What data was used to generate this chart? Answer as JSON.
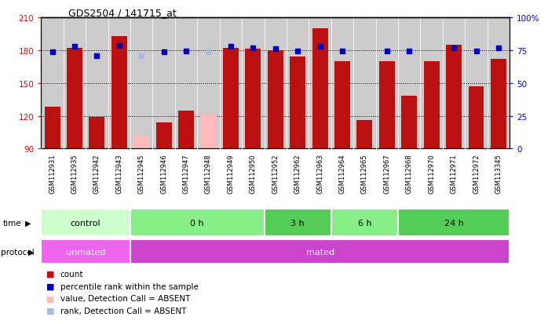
{
  "title": "GDS2504 / 141715_at",
  "samples": [
    "GSM112931",
    "GSM112935",
    "GSM112942",
    "GSM112943",
    "GSM112945",
    "GSM112946",
    "GSM112947",
    "GSM112948",
    "GSM112949",
    "GSM112950",
    "GSM112952",
    "GSM112962",
    "GSM112963",
    "GSM112964",
    "GSM112965",
    "GSM112967",
    "GSM112968",
    "GSM112970",
    "GSM112971",
    "GSM112972",
    "GSM113345"
  ],
  "red_values": [
    128,
    182,
    119,
    193,
    null,
    114,
    125,
    null,
    182,
    181,
    180,
    174,
    200,
    170,
    116,
    170,
    138,
    170,
    185,
    147,
    172
  ],
  "pink_values": [
    null,
    null,
    null,
    null,
    102,
    null,
    null,
    121,
    null,
    null,
    null,
    null,
    null,
    null,
    null,
    null,
    null,
    null,
    null,
    null,
    null
  ],
  "blue_values": [
    178,
    183,
    175,
    184,
    null,
    178,
    179,
    null,
    183,
    182,
    181,
    179,
    183,
    179,
    null,
    179,
    179,
    null,
    182,
    179,
    182
  ],
  "lightblue_values": [
    null,
    null,
    null,
    null,
    175,
    null,
    null,
    178,
    null,
    null,
    null,
    null,
    null,
    null,
    null,
    null,
    null,
    null,
    null,
    null,
    null
  ],
  "absent_red": [
    false,
    false,
    false,
    false,
    true,
    false,
    false,
    true,
    false,
    false,
    false,
    false,
    false,
    false,
    false,
    false,
    false,
    false,
    false,
    false,
    false
  ],
  "absent_blue": [
    false,
    false,
    false,
    false,
    true,
    false,
    false,
    true,
    false,
    false,
    false,
    false,
    false,
    false,
    false,
    false,
    false,
    false,
    false,
    false,
    false
  ],
  "time_groups": [
    {
      "label": "control",
      "start": 0,
      "end": 4,
      "color": "#ccffcc"
    },
    {
      "label": "0 h",
      "start": 4,
      "end": 10,
      "color": "#88ee88"
    },
    {
      "label": "3 h",
      "start": 10,
      "end": 13,
      "color": "#55cc55"
    },
    {
      "label": "6 h",
      "start": 13,
      "end": 16,
      "color": "#88ee88"
    },
    {
      "label": "24 h",
      "start": 16,
      "end": 21,
      "color": "#55cc55"
    }
  ],
  "protocol_groups": [
    {
      "label": "unmated",
      "start": 0,
      "end": 4,
      "color": "#ee66ee"
    },
    {
      "label": "mated",
      "start": 4,
      "end": 21,
      "color": "#cc44cc"
    }
  ],
  "ylim_left": [
    90,
    210
  ],
  "ylim_right": [
    0,
    100
  ],
  "yticks_left": [
    90,
    120,
    150,
    180,
    210
  ],
  "yticks_right": [
    0,
    25,
    50,
    75,
    100
  ],
  "bar_color_red": "#bb1111",
  "bar_color_pink": "#ffbbbb",
  "dot_color_blue": "#0000bb",
  "dot_color_lightblue": "#aabbdd",
  "chart_bg": "#cccccc"
}
